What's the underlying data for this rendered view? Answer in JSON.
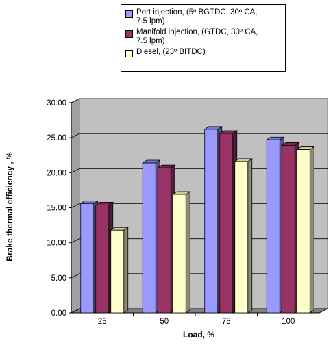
{
  "chart_data": {
    "type": "bar",
    "title": "",
    "xlabel": "Load, %",
    "ylabel": "Brake thermal efficiency , %",
    "categories": [
      "25",
      "50",
      "75",
      "100"
    ],
    "yticks": [
      "0.00",
      "5.00",
      "10.00",
      "15.00",
      "20.00",
      "25.00",
      "30.00"
    ],
    "ylim": [
      0,
      30
    ],
    "grid": true,
    "three_d": true,
    "legend_position": "top",
    "series": [
      {
        "name": "Port injection, (5º BGTDC, 30º CA,\n7.5 lpm)",
        "color": "#9999ff",
        "values": [
          15.6,
          21.4,
          26.2,
          24.7
        ]
      },
      {
        "name": "Manifold injection, (GTDC, 30º CA,\n7.5 lpm)",
        "color": "#993366",
        "values": [
          15.4,
          20.7,
          25.6,
          23.9
        ]
      },
      {
        "name": "Diesel, (23º BITDC)",
        "color": "#ffffcc",
        "values": [
          11.8,
          16.9,
          21.6,
          23.3
        ]
      }
    ],
    "plot_wall_color": "#c0c0c0",
    "floor_color": "#808080"
  }
}
